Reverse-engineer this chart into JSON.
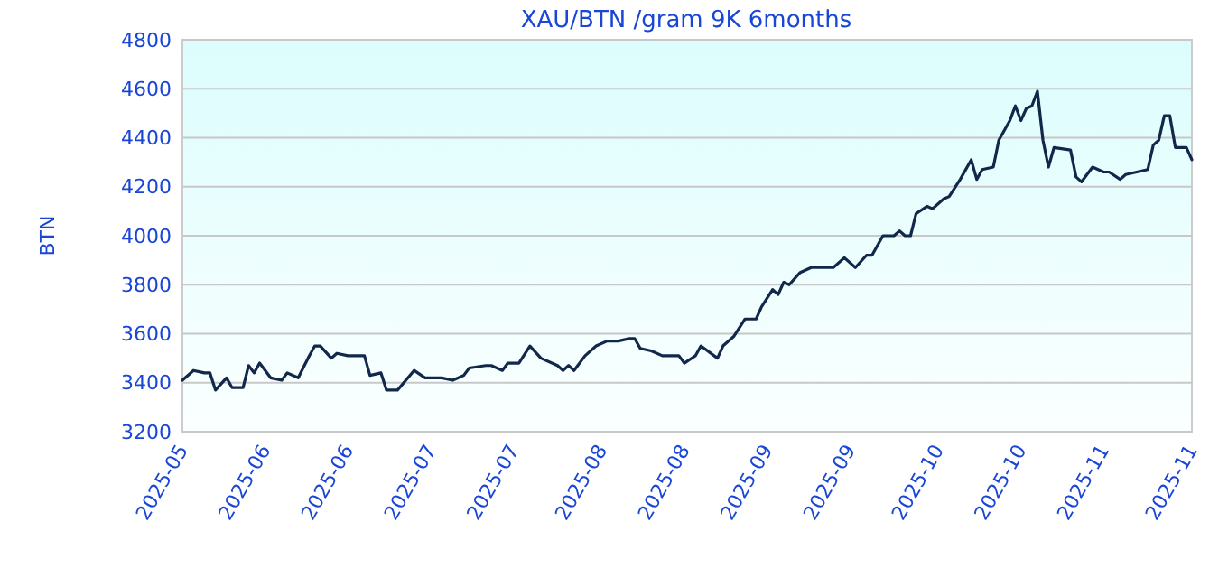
{
  "chart_data": {
    "type": "line",
    "title": "XAU/BTN /gram 9K 6months",
    "ylabel": "BTN",
    "x": [
      "2025-05-14",
      "2025-05-16",
      "2025-05-18",
      "2025-05-19",
      "2025-05-20",
      "2025-05-22",
      "2025-05-23",
      "2025-05-25",
      "2025-05-26",
      "2025-05-27",
      "2025-05-28",
      "2025-05-30",
      "2025-06-01",
      "2025-06-02",
      "2025-06-04",
      "2025-06-06",
      "2025-06-07",
      "2025-06-08",
      "2025-06-10",
      "2025-06-11",
      "2025-06-13",
      "2025-06-16",
      "2025-06-17",
      "2025-06-19",
      "2025-06-20",
      "2025-06-22",
      "2025-06-25",
      "2025-06-27",
      "2025-06-30",
      "2025-07-02",
      "2025-07-04",
      "2025-07-05",
      "2025-07-08",
      "2025-07-09",
      "2025-07-11",
      "2025-07-12",
      "2025-07-14",
      "2025-07-16",
      "2025-07-18",
      "2025-07-21",
      "2025-07-22",
      "2025-07-23",
      "2025-07-24",
      "2025-07-26",
      "2025-07-28",
      "2025-07-30",
      "2025-08-01",
      "2025-08-03",
      "2025-08-04",
      "2025-08-05",
      "2025-08-07",
      "2025-08-09",
      "2025-08-12",
      "2025-08-13",
      "2025-08-15",
      "2025-08-16",
      "2025-08-19",
      "2025-08-20",
      "2025-08-22",
      "2025-08-24",
      "2025-08-26",
      "2025-08-27",
      "2025-08-29",
      "2025-08-30",
      "2025-08-31",
      "2025-09-01",
      "2025-09-03",
      "2025-09-05",
      "2025-09-07",
      "2025-09-09",
      "2025-09-11",
      "2025-09-13",
      "2025-09-15",
      "2025-09-16",
      "2025-09-18",
      "2025-09-20",
      "2025-09-21",
      "2025-09-22",
      "2025-09-23",
      "2025-09-24",
      "2025-09-26",
      "2025-09-27",
      "2025-09-29",
      "2025-09-30",
      "2025-10-02",
      "2025-10-04",
      "2025-10-05",
      "2025-10-06",
      "2025-10-08",
      "2025-10-09",
      "2025-10-11",
      "2025-10-12",
      "2025-10-13",
      "2025-10-14",
      "2025-10-15",
      "2025-10-16",
      "2025-10-17",
      "2025-10-18",
      "2025-10-19",
      "2025-10-22",
      "2025-10-23",
      "2025-10-24",
      "2025-10-26",
      "2025-10-28",
      "2025-10-29",
      "2025-10-31",
      "2025-11-01",
      "2025-11-03",
      "2025-11-05",
      "2025-11-06",
      "2025-11-07",
      "2025-11-08",
      "2025-11-09",
      "2025-11-10",
      "2025-11-12",
      "2025-11-13"
    ],
    "series": [
      {
        "color": "#12284a",
        "values": [
          3410,
          3450,
          3440,
          3440,
          3370,
          3420,
          3380,
          3380,
          3470,
          3440,
          3480,
          3420,
          3410,
          3440,
          3420,
          3510,
          3550,
          3550,
          3500,
          3520,
          3510,
          3510,
          3430,
          3440,
          3370,
          3370,
          3450,
          3420,
          3420,
          3410,
          3430,
          3460,
          3470,
          3470,
          3450,
          3480,
          3480,
          3550,
          3500,
          3470,
          3450,
          3470,
          3450,
          3510,
          3550,
          3570,
          3570,
          3580,
          3580,
          3540,
          3530,
          3510,
          3510,
          3480,
          3510,
          3550,
          3500,
          3550,
          3590,
          3660,
          3660,
          3710,
          3780,
          3760,
          3810,
          3800,
          3850,
          3870,
          3870,
          3870,
          3910,
          3870,
          3920,
          3920,
          4000,
          4000,
          4020,
          4000,
          4000,
          4090,
          4120,
          4110,
          4150,
          4160,
          4230,
          4310,
          4230,
          4270,
          4280,
          4390,
          4470,
          4530,
          4470,
          4520,
          4530,
          4590,
          4390,
          4280,
          4360,
          4350,
          4240,
          4220,
          4280,
          4260,
          4260,
          4230,
          4250,
          4260,
          4270,
          4370,
          4390,
          4490,
          4490,
          4360,
          4360,
          4310
        ]
      }
    ],
    "xlim": [
      "2025-05-14",
      "2025-11-13"
    ],
    "xticks": [
      {
        "value": "2025-05-14",
        "label": "2025-05"
      },
      {
        "value": "2025-05-29",
        "label": "2025-06"
      },
      {
        "value": "2025-06-13",
        "label": "2025-06"
      },
      {
        "value": "2025-06-28",
        "label": "2025-07"
      },
      {
        "value": "2025-07-13",
        "label": "2025-07"
      },
      {
        "value": "2025-07-29",
        "label": "2025-08"
      },
      {
        "value": "2025-08-13",
        "label": "2025-08"
      },
      {
        "value": "2025-08-28",
        "label": "2025-09"
      },
      {
        "value": "2025-09-12",
        "label": "2025-09"
      },
      {
        "value": "2025-09-28",
        "label": "2025-10"
      },
      {
        "value": "2025-10-13",
        "label": "2025-10"
      },
      {
        "value": "2025-10-28",
        "label": "2025-11"
      },
      {
        "value": "2025-11-13",
        "label": "2025-11"
      }
    ],
    "ylim": [
      3200,
      4800
    ],
    "yticks": [
      3200,
      3400,
      3600,
      3800,
      4000,
      4200,
      4400,
      4600,
      4800
    ],
    "grid": "y",
    "marker": "none",
    "line_style": "solid"
  }
}
